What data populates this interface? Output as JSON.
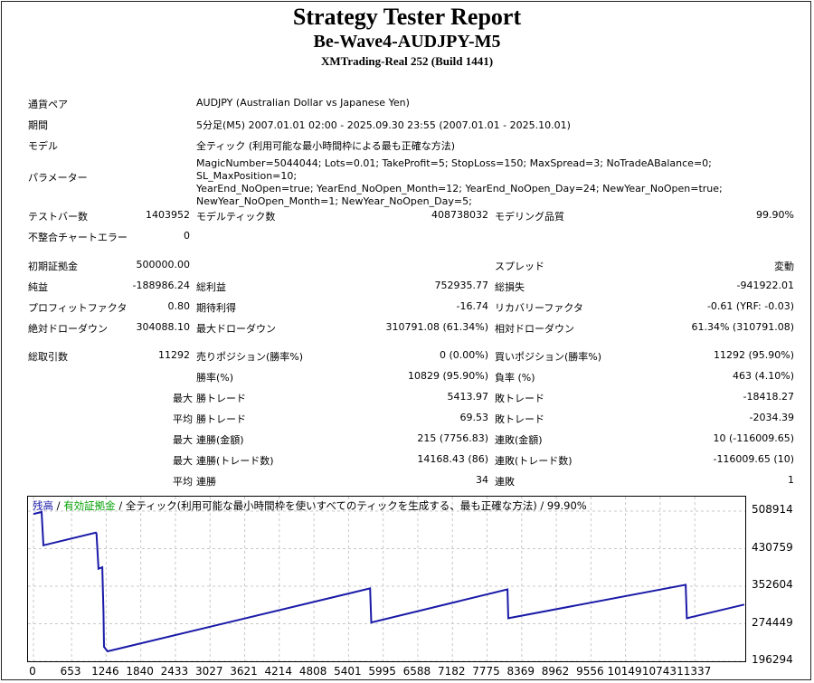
{
  "header": {
    "title": "Strategy Tester Report",
    "subtitle": "Be-Wave4-AUDJPY-M5",
    "server": "XMTrading-Real 252 (Build 1441)"
  },
  "info": {
    "symbol_label": "通貨ペア",
    "symbol": "AUDJPY (Australian Dollar vs Japanese Yen)",
    "period_label": "期間",
    "period": "5分足(M5) 2007.01.01 02:00 - 2025.09.30 23:55 (2007.01.01 - 2025.10.01)",
    "model_label": "モデル",
    "model": "全ティック (利用可能な最小時間枠による最も正確な方法)",
    "params_label": "パラメーター",
    "params": [
      "MagicNumber=5044044; Lots=0.01; TakeProfit=5; StopLoss=150; MaxSpread=3; NoTradeABalance=0; SL_MaxPosition=10;",
      "YearEnd_NoOpen=true; YearEnd_NoOpen_Month=12; YearEnd_NoOpen_Day=24; NewYear_NoOpen=true;",
      "NewYear_NoOpen_Month=1; NewYear_NoOpen_Day=5;"
    ]
  },
  "stats": {
    "bars_label": "テストバー数",
    "bars": "1403952",
    "ticks_label": "モデルティック数",
    "ticks": "408738032",
    "quality_label": "モデリング品質",
    "quality": "99.90%",
    "errors_label": "不整合チャートエラー",
    "errors": "0",
    "deposit_label": "初期証拠金",
    "deposit": "500000.00",
    "spread_label": "スプレッド",
    "spread": "変動",
    "net_label": "純益",
    "net": "-188986.24",
    "gross_profit_label": "総利益",
    "gross_profit": "752935.77",
    "gross_loss_label": "総損失",
    "gross_loss": "-941922.01",
    "pf_label": "プロフィットファクタ",
    "pf": "0.80",
    "expected_label": "期待利得",
    "expected": "-16.74",
    "recovery_label": "リカバリーファクタ",
    "recovery": "-0.61 (YRF: -0.03)",
    "abs_dd_label": "絶対ドローダウン",
    "abs_dd": "304088.10",
    "max_dd_label": "最大ドローダウン",
    "max_dd": "310791.08 (61.34%)",
    "rel_dd_label": "相対ドローダウン",
    "rel_dd": "61.34% (310791.08)",
    "trades_label": "総取引数",
    "trades": "11292",
    "short_label": "売りポジション(勝率%)",
    "short": "0 (0.00%)",
    "long_label": "買いポジション(勝率%)",
    "long": "11292 (95.90%)",
    "win_label": "勝率(%)",
    "win": "10829 (95.90%)",
    "loss_label": "負率 (%)",
    "loss": "463 (4.10%)",
    "max_label": "最大",
    "avg_label": "平均",
    "largest_win_label": "勝トレード",
    "largest_win": "5413.97",
    "largest_loss_label": "敗トレード",
    "largest_loss": "-18418.27",
    "avg_win_label": "勝トレード",
    "avg_win": "69.53",
    "avg_loss_label": "敗トレード",
    "avg_loss": "-2034.39",
    "cons_win_money_label": "連勝(金額)",
    "cons_win_money": "215 (7756.83)",
    "cons_loss_money_label": "連敗(金額)",
    "cons_loss_money": "10 (-116009.65)",
    "cons_win_count_label": "連勝(トレード数)",
    "cons_win_count": "14168.43 (86)",
    "cons_loss_count_label": "連敗(トレード数)",
    "cons_loss_count": "-116009.65 (10)",
    "avg_cons_win_label": "連勝",
    "avg_cons_win": "34",
    "avg_cons_loss_label": "連敗",
    "avg_cons_loss": "1"
  },
  "chart_data": {
    "type": "line",
    "legend": {
      "balance": "残高",
      "sep1": " / ",
      "equity": "有効証拠金",
      "rest": " / 全ティック(利用可能な最小時間枠を使いすべてのティックを生成する、最も正確な方法) / 99.90%"
    },
    "colors": {
      "balance": "#1a1aa8",
      "equity": "#00a000",
      "grid": "#c8c8c8"
    },
    "yticks": [
      508914,
      430759,
      352604,
      274449,
      196294
    ],
    "xticks": [
      0,
      653,
      1246,
      1840,
      2433,
      3027,
      3621,
      4214,
      4808,
      5401,
      5995,
      6588,
      7182,
      7775,
      8369,
      8962,
      9556,
      10149,
      10743,
      11337
    ],
    "ylim": [
      196294,
      508914
    ],
    "xlim": [
      0,
      12200
    ],
    "grid": true,
    "series": [
      {
        "name": "残高",
        "x": [
          0,
          140,
          170,
          1070,
          1080,
          1115,
          1180,
          1200,
          1210,
          1270,
          5770,
          5790,
          8125,
          8140,
          11180,
          11200,
          12185
        ],
        "y": [
          503000,
          507000,
          437800,
          464000,
          462000,
          389000,
          392000,
          300000,
          226500,
          217000,
          348000,
          277000,
          346000,
          286000,
          355600,
          286000,
          314400
        ]
      }
    ]
  }
}
